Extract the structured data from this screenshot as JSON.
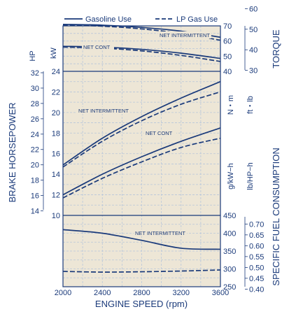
{
  "legend": [
    {
      "label": "Gasoline Use",
      "style": "solid"
    },
    {
      "label": "LP Gas Use",
      "style": "dashed"
    }
  ],
  "colors": {
    "ink": "#1a3a7a",
    "panel": "#ede6d6",
    "grid": "#b8c6da"
  },
  "axis_titles": {
    "left": "BRAKE HORSEPOWER",
    "bottom": "ENGINE SPEED (rpm)",
    "right_top": "TORQUE",
    "right_bottom": "SPECIFIC FUEL CONSUMPTION"
  },
  "unit_labels": {
    "hp": "HP",
    "kw": "kW",
    "nm": "N・m",
    "ftlb": "ft・lb",
    "gkwh": "g/kW−h",
    "lbhph": "lb/HP−h"
  },
  "annotations": {
    "torque_intermittent": "NET INTERMITTENT",
    "torque_cont": "NET CONT",
    "power_intermittent": "NET INTERMITTENT",
    "power_cont": "NET CONT",
    "sfc_intermittent": "NET INTERMITTENT"
  },
  "chart_data": {
    "type": "line",
    "x": [
      2000,
      2400,
      2800,
      3200,
      3600
    ],
    "x_range": [
      2000,
      3600
    ],
    "x_ticks": [
      "2000",
      "2400",
      "2800",
      "3200",
      "3600"
    ],
    "grid": true,
    "legend_position": "top",
    "panels": [
      {
        "name": "torque",
        "kw_ticks": [
          "HP",
          "kW"
        ],
        "nm_ticks": [
          "40",
          "50",
          "60",
          "70"
        ],
        "ftlb_ticks": [
          "30",
          "40",
          "50",
          "60"
        ],
        "nm_range": [
          40,
          70
        ],
        "series": [
          {
            "name": "NET INTERMITTENT",
            "fuel": "Gasoline Use",
            "values": [
              71,
              70.5,
              69,
              66.5,
              62.5
            ]
          },
          {
            "name": "NET INTERMITTENT",
            "fuel": "LP Gas Use",
            "values": [
              70.5,
              69.8,
              68,
              65,
              60.5
            ]
          },
          {
            "name": "NET CONT",
            "fuel": "Gasoline Use",
            "values": [
              56.5,
              56,
              54.5,
              52,
              48.5
            ]
          },
          {
            "name": "NET CONT",
            "fuel": "LP Gas Use",
            "values": [
              56,
              55.3,
              53.5,
              50.5,
              46.5
            ]
          }
        ]
      },
      {
        "name": "power",
        "kw_ticks": [
          "10",
          "12",
          "14",
          "16",
          "18",
          "20",
          "22",
          "24"
        ],
        "hp_ticks": [
          "14",
          "16",
          "18",
          "20",
          "22",
          "24",
          "26",
          "28",
          "30",
          "32"
        ],
        "kw_range": [
          10,
          24
        ],
        "series": [
          {
            "name": "NET INTERMITTENT",
            "fuel": "Gasoline Use",
            "values": [
              14.9,
              17.5,
              19.6,
              21.4,
              23
            ]
          },
          {
            "name": "NET INTERMITTENT",
            "fuel": "LP Gas Use",
            "values": [
              14.7,
              17.2,
              19.2,
              20.8,
              22
            ]
          },
          {
            "name": "NET CONT",
            "fuel": "Gasoline Use",
            "values": [
              12,
              14,
              15.7,
              17.2,
              18.5
            ]
          },
          {
            "name": "NET CONT",
            "fuel": "LP Gas Use",
            "values": [
              11.7,
              13.6,
              15.2,
              16.6,
              17.5
            ]
          }
        ]
      },
      {
        "name": "sfc",
        "gkwh_ticks": [
          "250",
          "300",
          "350",
          "400",
          "450"
        ],
        "lbhph_ticks": [
          "0.40",
          "0.45",
          "0.50",
          "0.55",
          "0.60",
          "0.65",
          "0.70"
        ],
        "gkwh_range": [
          250,
          450
        ],
        "series": [
          {
            "name": "NET INTERMITTENT",
            "fuel": "Gasoline Use",
            "values": [
              410,
              400,
              380,
              358,
              355
            ]
          },
          {
            "name": "NET INTERMITTENT",
            "fuel": "LP Gas Use",
            "values": [
              293,
              291,
              292,
              294,
              297
            ]
          }
        ]
      }
    ]
  }
}
